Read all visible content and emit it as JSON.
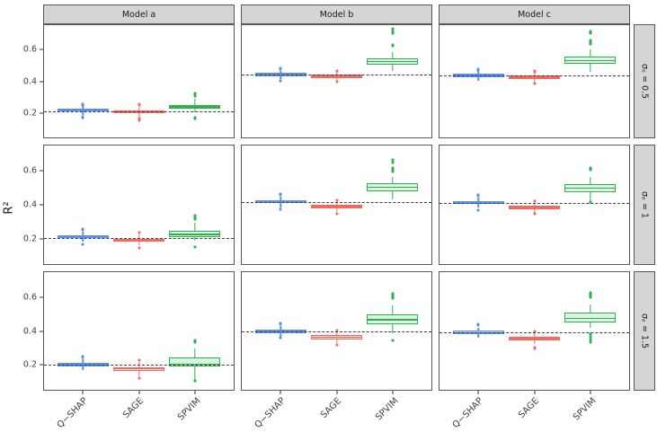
{
  "chart_data": {
    "type": "boxplot",
    "title": "",
    "ylabel": "R²",
    "xlabel": "",
    "categories": [
      "Q−SHAP",
      "SAGE",
      "SPVIM"
    ],
    "col_facets": [
      "Model a",
      "Model b",
      "Model c"
    ],
    "row_facets": [
      "σₑ = 0.5",
      "σₑ = 1",
      "σₑ = 1.5"
    ],
    "yticks": [
      0.2,
      0.4,
      0.6
    ],
    "ylim": [
      0.045,
      0.755
    ],
    "grid": "off",
    "legend": "none",
    "series_styles": [
      {
        "name": "Q−SHAP",
        "stroke": "#5b8fe8",
        "fill": "#b7cff4"
      },
      {
        "name": "SAGE",
        "stroke": "#f4695f",
        "fill": "#fad9d5"
      },
      {
        "name": "SPVIM",
        "stroke": "#2bb24c",
        "fill": "#dff3e3"
      }
    ],
    "box_centers_pct": [
      20.5,
      50,
      79.5
    ],
    "box_halfwidth_pct": 13.5,
    "panels": [
      {
        "row": "σₑ = 0.5",
        "col": "Model a",
        "dashed_line": 0.21,
        "boxes": [
          {
            "cat": "Q−SHAP",
            "median": 0.215,
            "q1": 0.207,
            "q3": 0.224,
            "lo": 0.188,
            "hi": 0.245,
            "outliers": [
              0.252,
              0.257,
              0.178,
              0.172
            ]
          },
          {
            "cat": "SAGE",
            "median": 0.205,
            "q1": 0.196,
            "q3": 0.214,
            "lo": 0.172,
            "hi": 0.238,
            "outliers": [
              0.248,
              0.254,
              0.162,
              0.155
            ]
          },
          {
            "cat": "SPVIM",
            "median": 0.238,
            "q1": 0.227,
            "q3": 0.251,
            "lo": 0.203,
            "hi": 0.287,
            "outliers": [
              0.308,
              0.315,
              0.321,
              0.172,
              0.165
            ]
          }
        ]
      },
      {
        "row": "σₑ = 0.5",
        "col": "Model b",
        "dashed_line": 0.44,
        "boxes": [
          {
            "cat": "Q−SHAP",
            "median": 0.443,
            "q1": 0.434,
            "q3": 0.452,
            "lo": 0.413,
            "hi": 0.468,
            "outliers": [
              0.476,
              0.481,
              0.405
            ]
          },
          {
            "cat": "SAGE",
            "median": 0.431,
            "q1": 0.422,
            "q3": 0.441,
            "lo": 0.403,
            "hi": 0.459,
            "outliers": [
              0.466,
              0.396
            ]
          },
          {
            "cat": "SPVIM",
            "median": 0.524,
            "q1": 0.504,
            "q3": 0.547,
            "lo": 0.464,
            "hi": 0.585,
            "outliers": [
              0.622,
              0.629,
              0.706,
              0.716,
              0.731
            ]
          }
        ]
      },
      {
        "row": "σₑ = 0.5",
        "col": "Model c",
        "dashed_line": 0.435,
        "boxes": [
          {
            "cat": "Q−SHAP",
            "median": 0.437,
            "q1": 0.428,
            "q3": 0.447,
            "lo": 0.404,
            "hi": 0.463,
            "outliers": [
              0.471,
              0.476
            ]
          },
          {
            "cat": "SAGE",
            "median": 0.426,
            "q1": 0.416,
            "q3": 0.436,
            "lo": 0.394,
            "hi": 0.452,
            "outliers": [
              0.459,
              0.464,
              0.384
            ]
          },
          {
            "cat": "SPVIM",
            "median": 0.531,
            "q1": 0.509,
            "q3": 0.556,
            "lo": 0.461,
            "hi": 0.601,
            "outliers": [
              0.638,
              0.648,
              0.656,
              0.702,
              0.718
            ]
          }
        ]
      },
      {
        "row": "σₑ = 1",
        "col": "Model a",
        "dashed_line": 0.2,
        "boxes": [
          {
            "cat": "Q−SHAP",
            "median": 0.208,
            "q1": 0.199,
            "q3": 0.217,
            "lo": 0.178,
            "hi": 0.241,
            "outliers": [
              0.251,
              0.256,
              0.163
            ]
          },
          {
            "cat": "SAGE",
            "median": 0.189,
            "q1": 0.18,
            "q3": 0.198,
            "lo": 0.158,
            "hi": 0.221,
            "outliers": [
              0.231,
              0.143
            ]
          },
          {
            "cat": "SPVIM",
            "median": 0.221,
            "q1": 0.209,
            "q3": 0.243,
            "lo": 0.183,
            "hi": 0.291,
            "outliers": [
              0.314,
              0.324,
              0.336,
              0.149
            ]
          }
        ]
      },
      {
        "row": "σₑ = 1",
        "col": "Model b",
        "dashed_line": 0.415,
        "boxes": [
          {
            "cat": "Q−SHAP",
            "median": 0.418,
            "q1": 0.408,
            "q3": 0.428,
            "lo": 0.384,
            "hi": 0.451,
            "outliers": [
              0.459,
              0.464,
              0.372
            ]
          },
          {
            "cat": "SAGE",
            "median": 0.39,
            "q1": 0.38,
            "q3": 0.4,
            "lo": 0.359,
            "hi": 0.421,
            "outliers": [
              0.429,
              0.348
            ]
          },
          {
            "cat": "SPVIM",
            "median": 0.504,
            "q1": 0.479,
            "q3": 0.531,
            "lo": 0.434,
            "hi": 0.567,
            "outliers": [
              0.598,
              0.605,
              0.613,
              0.621,
              0.654,
              0.668
            ]
          }
        ]
      },
      {
        "row": "σₑ = 1",
        "col": "Model c",
        "dashed_line": 0.41,
        "boxes": [
          {
            "cat": "Q−SHAP",
            "median": 0.414,
            "q1": 0.404,
            "q3": 0.424,
            "lo": 0.383,
            "hi": 0.442,
            "outliers": [
              0.452,
              0.458,
              0.368
            ]
          },
          {
            "cat": "SAGE",
            "median": 0.385,
            "q1": 0.375,
            "q3": 0.395,
            "lo": 0.354,
            "hi": 0.412,
            "outliers": [
              0.421,
              0.344
            ]
          },
          {
            "cat": "SPVIM",
            "median": 0.499,
            "q1": 0.474,
            "q3": 0.526,
            "lo": 0.424,
            "hi": 0.566,
            "outliers": [
              0.612,
              0.621,
              0.418
            ]
          }
        ]
      },
      {
        "row": "σₑ = 1.5",
        "col": "Model a",
        "dashed_line": 0.195,
        "boxes": [
          {
            "cat": "Q−SHAP",
            "median": 0.197,
            "q1": 0.188,
            "q3": 0.207,
            "lo": 0.164,
            "hi": 0.231,
            "outliers": [
              0.241,
              0.246
            ]
          },
          {
            "cat": "SAGE",
            "median": 0.172,
            "q1": 0.16,
            "q3": 0.183,
            "lo": 0.124,
            "hi": 0.212,
            "outliers": [
              0.224,
              0.113
            ]
          },
          {
            "cat": "SPVIM",
            "median": 0.199,
            "q1": 0.184,
            "q3": 0.241,
            "lo": 0.104,
            "hi": 0.296,
            "outliers": [
              0.334,
              0.341,
              0.097
            ]
          }
        ]
      },
      {
        "row": "σₑ = 1.5",
        "col": "Model b",
        "dashed_line": 0.395,
        "boxes": [
          {
            "cat": "Q−SHAP",
            "median": 0.398,
            "q1": 0.388,
            "q3": 0.408,
            "lo": 0.366,
            "hi": 0.431,
            "outliers": [
              0.441,
              0.447,
              0.358
            ]
          },
          {
            "cat": "SAGE",
            "median": 0.362,
            "q1": 0.351,
            "q3": 0.373,
            "lo": 0.329,
            "hi": 0.394,
            "outliers": [
              0.404,
              0.318
            ]
          },
          {
            "cat": "SPVIM",
            "median": 0.469,
            "q1": 0.442,
            "q3": 0.501,
            "lo": 0.388,
            "hi": 0.556,
            "outliers": [
              0.598,
              0.606,
              0.613,
              0.624,
              0.344
            ]
          }
        ]
      },
      {
        "row": "σₑ = 1.5",
        "col": "Model c",
        "dashed_line": 0.39,
        "boxes": [
          {
            "cat": "Q−SHAP",
            "median": 0.39,
            "q1": 0.38,
            "q3": 0.401,
            "lo": 0.359,
            "hi": 0.421,
            "outliers": [
              0.433,
              0.439
            ]
          },
          {
            "cat": "SAGE",
            "median": 0.355,
            "q1": 0.344,
            "q3": 0.366,
            "lo": 0.319,
            "hi": 0.389,
            "outliers": [
              0.399,
              0.302,
              0.295
            ]
          },
          {
            "cat": "SPVIM",
            "median": 0.476,
            "q1": 0.449,
            "q3": 0.509,
            "lo": 0.419,
            "hi": 0.558,
            "outliers": [
              0.601,
              0.611,
              0.621,
              0.632,
              0.379,
              0.363,
              0.349,
              0.334
            ]
          }
        ]
      }
    ]
  }
}
